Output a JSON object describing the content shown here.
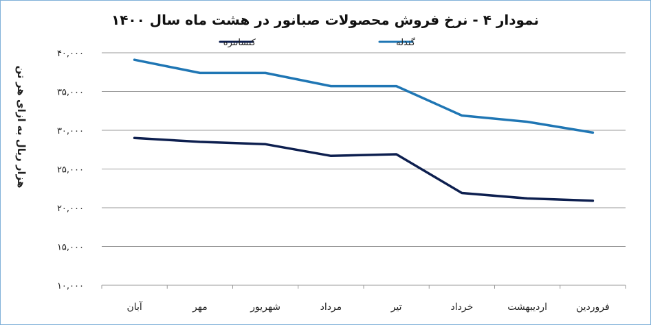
{
  "chart_data": {
    "type": "line",
    "title": "نمودار ۴ - نرخ فروش محصولات صبانور در هشت ماه سال ۱۴۰۰",
    "ylabel": "هزار ریال به ازای هر تن",
    "xlabel": "",
    "categories": [
      "فروردین",
      "اردیبهشت",
      "خرداد",
      "تیر",
      "مرداد",
      "شهریور",
      "مهر",
      "آبان"
    ],
    "ylim": [
      10000,
      40000
    ],
    "yticks": [
      10000,
      15000,
      20000,
      25000,
      30000,
      35000,
      40000
    ],
    "ytick_labels": [
      "۱۰,۰۰۰",
      "۱۵,۰۰۰",
      "۲۰,۰۰۰",
      "۲۵,۰۰۰",
      "۳۰,۰۰۰",
      "۳۵,۰۰۰",
      "۴۰,۰۰۰"
    ],
    "grid": true,
    "legend_position": "top",
    "series": [
      {
        "name": "کنسانتره",
        "color": "#0d1f4f",
        "values": [
          20900,
          21200,
          21900,
          26900,
          26700,
          28200,
          28500,
          29000
        ]
      },
      {
        "name": "گندله",
        "color": "#1f76b4",
        "values": [
          29700,
          31100,
          31900,
          35700,
          35700,
          37400,
          37400,
          39100
        ]
      }
    ]
  }
}
